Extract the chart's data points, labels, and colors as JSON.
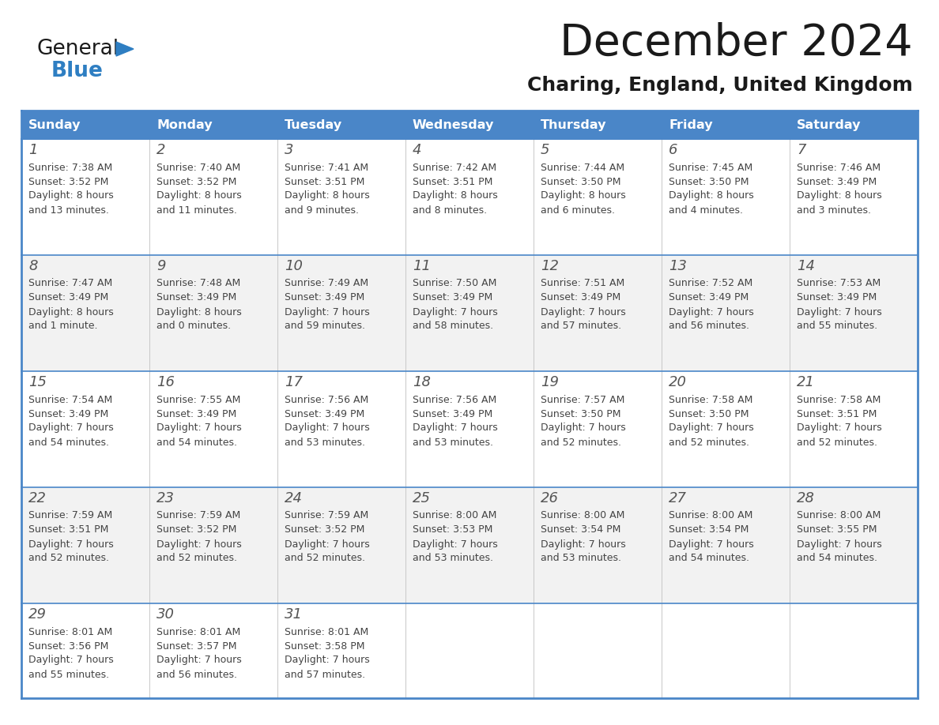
{
  "title": "December 2024",
  "subtitle": "Charing, England, United Kingdom",
  "header_color": "#4a86c8",
  "header_text_color": "#ffffff",
  "row_colors": [
    "#ffffff",
    "#f2f2f2"
  ],
  "border_color": "#4a86c8",
  "text_color": "#444444",
  "day_names": [
    "Sunday",
    "Monday",
    "Tuesday",
    "Wednesday",
    "Thursday",
    "Friday",
    "Saturday"
  ],
  "weeks": [
    [
      {
        "day": "1",
        "sunrise": "7:38 AM",
        "sunset": "3:52 PM",
        "daylight": "8 hours\nand 13 minutes."
      },
      {
        "day": "2",
        "sunrise": "7:40 AM",
        "sunset": "3:52 PM",
        "daylight": "8 hours\nand 11 minutes."
      },
      {
        "day": "3",
        "sunrise": "7:41 AM",
        "sunset": "3:51 PM",
        "daylight": "8 hours\nand 9 minutes."
      },
      {
        "day": "4",
        "sunrise": "7:42 AM",
        "sunset": "3:51 PM",
        "daylight": "8 hours\nand 8 minutes."
      },
      {
        "day": "5",
        "sunrise": "7:44 AM",
        "sunset": "3:50 PM",
        "daylight": "8 hours\nand 6 minutes."
      },
      {
        "day": "6",
        "sunrise": "7:45 AM",
        "sunset": "3:50 PM",
        "daylight": "8 hours\nand 4 minutes."
      },
      {
        "day": "7",
        "sunrise": "7:46 AM",
        "sunset": "3:49 PM",
        "daylight": "8 hours\nand 3 minutes."
      }
    ],
    [
      {
        "day": "8",
        "sunrise": "7:47 AM",
        "sunset": "3:49 PM",
        "daylight": "8 hours\nand 1 minute."
      },
      {
        "day": "9",
        "sunrise": "7:48 AM",
        "sunset": "3:49 PM",
        "daylight": "8 hours\nand 0 minutes."
      },
      {
        "day": "10",
        "sunrise": "7:49 AM",
        "sunset": "3:49 PM",
        "daylight": "7 hours\nand 59 minutes."
      },
      {
        "day": "11",
        "sunrise": "7:50 AM",
        "sunset": "3:49 PM",
        "daylight": "7 hours\nand 58 minutes."
      },
      {
        "day": "12",
        "sunrise": "7:51 AM",
        "sunset": "3:49 PM",
        "daylight": "7 hours\nand 57 minutes."
      },
      {
        "day": "13",
        "sunrise": "7:52 AM",
        "sunset": "3:49 PM",
        "daylight": "7 hours\nand 56 minutes."
      },
      {
        "day": "14",
        "sunrise": "7:53 AM",
        "sunset": "3:49 PM",
        "daylight": "7 hours\nand 55 minutes."
      }
    ],
    [
      {
        "day": "15",
        "sunrise": "7:54 AM",
        "sunset": "3:49 PM",
        "daylight": "7 hours\nand 54 minutes."
      },
      {
        "day": "16",
        "sunrise": "7:55 AM",
        "sunset": "3:49 PM",
        "daylight": "7 hours\nand 54 minutes."
      },
      {
        "day": "17",
        "sunrise": "7:56 AM",
        "sunset": "3:49 PM",
        "daylight": "7 hours\nand 53 minutes."
      },
      {
        "day": "18",
        "sunrise": "7:56 AM",
        "sunset": "3:49 PM",
        "daylight": "7 hours\nand 53 minutes."
      },
      {
        "day": "19",
        "sunrise": "7:57 AM",
        "sunset": "3:50 PM",
        "daylight": "7 hours\nand 52 minutes."
      },
      {
        "day": "20",
        "sunrise": "7:58 AM",
        "sunset": "3:50 PM",
        "daylight": "7 hours\nand 52 minutes."
      },
      {
        "day": "21",
        "sunrise": "7:58 AM",
        "sunset": "3:51 PM",
        "daylight": "7 hours\nand 52 minutes."
      }
    ],
    [
      {
        "day": "22",
        "sunrise": "7:59 AM",
        "sunset": "3:51 PM",
        "daylight": "7 hours\nand 52 minutes."
      },
      {
        "day": "23",
        "sunrise": "7:59 AM",
        "sunset": "3:52 PM",
        "daylight": "7 hours\nand 52 minutes."
      },
      {
        "day": "24",
        "sunrise": "7:59 AM",
        "sunset": "3:52 PM",
        "daylight": "7 hours\nand 52 minutes."
      },
      {
        "day": "25",
        "sunrise": "8:00 AM",
        "sunset": "3:53 PM",
        "daylight": "7 hours\nand 53 minutes."
      },
      {
        "day": "26",
        "sunrise": "8:00 AM",
        "sunset": "3:54 PM",
        "daylight": "7 hours\nand 53 minutes."
      },
      {
        "day": "27",
        "sunrise": "8:00 AM",
        "sunset": "3:54 PM",
        "daylight": "7 hours\nand 54 minutes."
      },
      {
        "day": "28",
        "sunrise": "8:00 AM",
        "sunset": "3:55 PM",
        "daylight": "7 hours\nand 54 minutes."
      }
    ],
    [
      {
        "day": "29",
        "sunrise": "8:01 AM",
        "sunset": "3:56 PM",
        "daylight": "7 hours\nand 55 minutes."
      },
      {
        "day": "30",
        "sunrise": "8:01 AM",
        "sunset": "3:57 PM",
        "daylight": "7 hours\nand 56 minutes."
      },
      {
        "day": "31",
        "sunrise": "8:01 AM",
        "sunset": "3:58 PM",
        "daylight": "7 hours\nand 57 minutes."
      },
      null,
      null,
      null,
      null
    ]
  ]
}
